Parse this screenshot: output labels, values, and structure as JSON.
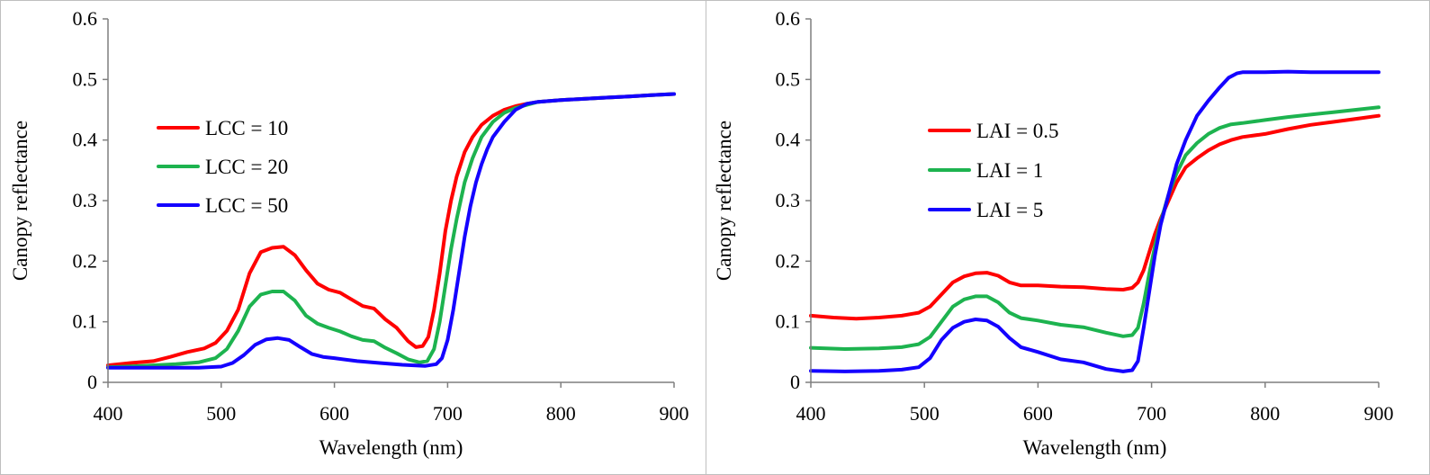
{
  "colors": {
    "red": "#ff0000",
    "green": "#1db34f",
    "blue": "#1400ff",
    "axis": "#7f7f7f",
    "frame": "#bfbfbf"
  },
  "chart_data": [
    {
      "type": "line",
      "xlabel": "Wavelength (nm)",
      "ylabel": "Canopy reflectance",
      "xlim": [
        400,
        900
      ],
      "ylim": [
        0,
        0.6
      ],
      "xticks": [
        400,
        500,
        600,
        700,
        800,
        900
      ],
      "yticks": [
        0,
        0.1,
        0.2,
        0.3,
        0.4,
        0.5,
        0.6
      ],
      "xtick_labels": [
        "400",
        "500",
        "600",
        "700",
        "800",
        "900"
      ],
      "ytick_labels": [
        "0",
        "0.1",
        "0.2",
        "0.3",
        "0.4",
        "0.5",
        "0.6"
      ],
      "grid": false,
      "legend_position": "upper-left",
      "series": [
        {
          "name": "LCC = 10",
          "color": "#ff0000",
          "x": [
            400,
            420,
            440,
            455,
            470,
            485,
            495,
            505,
            515,
            525,
            535,
            545,
            555,
            565,
            575,
            585,
            595,
            605,
            615,
            625,
            635,
            645,
            655,
            665,
            672,
            678,
            683,
            688,
            693,
            698,
            703,
            708,
            715,
            722,
            730,
            740,
            750,
            760,
            770,
            780,
            800,
            820,
            840,
            860,
            880,
            900
          ],
          "y": [
            0.028,
            0.032,
            0.035,
            0.042,
            0.05,
            0.056,
            0.065,
            0.085,
            0.12,
            0.18,
            0.215,
            0.222,
            0.224,
            0.21,
            0.185,
            0.163,
            0.153,
            0.148,
            0.137,
            0.126,
            0.122,
            0.104,
            0.09,
            0.068,
            0.058,
            0.06,
            0.075,
            0.12,
            0.18,
            0.25,
            0.3,
            0.34,
            0.38,
            0.405,
            0.425,
            0.44,
            0.45,
            0.456,
            0.46,
            0.463,
            0.466,
            0.468,
            0.47,
            0.472,
            0.474,
            0.476
          ]
        },
        {
          "name": "LCC = 20",
          "color": "#1db34f",
          "x": [
            400,
            430,
            460,
            480,
            495,
            505,
            515,
            525,
            535,
            545,
            555,
            565,
            575,
            585,
            595,
            605,
            615,
            625,
            635,
            645,
            655,
            665,
            675,
            682,
            688,
            693,
            698,
            703,
            708,
            715,
            722,
            730,
            740,
            750,
            760,
            770,
            780,
            800,
            820,
            840,
            860,
            880,
            900
          ],
          "y": [
            0.025,
            0.027,
            0.03,
            0.033,
            0.04,
            0.055,
            0.085,
            0.125,
            0.145,
            0.15,
            0.15,
            0.135,
            0.11,
            0.097,
            0.09,
            0.084,
            0.076,
            0.07,
            0.068,
            0.057,
            0.048,
            0.038,
            0.033,
            0.035,
            0.055,
            0.1,
            0.16,
            0.22,
            0.27,
            0.33,
            0.37,
            0.405,
            0.43,
            0.445,
            0.453,
            0.458,
            0.463,
            0.466,
            0.468,
            0.47,
            0.472,
            0.474,
            0.476
          ]
        },
        {
          "name": "LCC = 50",
          "color": "#1400ff",
          "x": [
            400,
            440,
            480,
            500,
            510,
            520,
            530,
            540,
            550,
            560,
            570,
            580,
            590,
            600,
            620,
            640,
            660,
            680,
            690,
            695,
            700,
            705,
            710,
            715,
            720,
            725,
            730,
            735,
            740,
            750,
            760,
            770,
            780,
            800,
            820,
            840,
            860,
            880,
            900
          ],
          "y": [
            0.024,
            0.024,
            0.024,
            0.026,
            0.032,
            0.045,
            0.062,
            0.071,
            0.073,
            0.07,
            0.058,
            0.047,
            0.042,
            0.04,
            0.035,
            0.032,
            0.029,
            0.027,
            0.03,
            0.04,
            0.07,
            0.12,
            0.18,
            0.24,
            0.29,
            0.33,
            0.36,
            0.385,
            0.405,
            0.43,
            0.45,
            0.46,
            0.463,
            0.466,
            0.468,
            0.47,
            0.472,
            0.474,
            0.476
          ]
        }
      ]
    },
    {
      "type": "line",
      "xlabel": "Wavelength (nm)",
      "ylabel": "Canopy reflectance",
      "xlim": [
        400,
        900
      ],
      "ylim": [
        0,
        0.6
      ],
      "xticks": [
        400,
        500,
        600,
        700,
        800,
        900
      ],
      "yticks": [
        0,
        0.1,
        0.2,
        0.3,
        0.4,
        0.5,
        0.6
      ],
      "xtick_labels": [
        "400",
        "500",
        "600",
        "700",
        "800",
        "900"
      ],
      "ytick_labels": [
        "0",
        "0.1",
        "0.2",
        "0.3",
        "0.4",
        "0.5",
        "0.6"
      ],
      "grid": false,
      "legend_position": "upper-left",
      "series": [
        {
          "name": "LAI = 0.5",
          "color": "#ff0000",
          "x": [
            400,
            420,
            440,
            460,
            480,
            495,
            505,
            515,
            525,
            535,
            545,
            555,
            565,
            575,
            585,
            600,
            620,
            640,
            660,
            675,
            683,
            688,
            693,
            698,
            703,
            708,
            715,
            722,
            730,
            740,
            750,
            760,
            770,
            780,
            800,
            820,
            840,
            860,
            880,
            900
          ],
          "y": [
            0.11,
            0.107,
            0.105,
            0.107,
            0.11,
            0.115,
            0.125,
            0.145,
            0.165,
            0.175,
            0.18,
            0.181,
            0.176,
            0.165,
            0.16,
            0.16,
            0.158,
            0.157,
            0.154,
            0.153,
            0.156,
            0.165,
            0.185,
            0.215,
            0.245,
            0.27,
            0.3,
            0.33,
            0.355,
            0.37,
            0.383,
            0.393,
            0.4,
            0.405,
            0.41,
            0.418,
            0.425,
            0.43,
            0.435,
            0.44
          ]
        },
        {
          "name": "LAI = 1",
          "color": "#1db34f",
          "x": [
            400,
            430,
            460,
            480,
            495,
            505,
            515,
            525,
            535,
            545,
            555,
            565,
            575,
            585,
            600,
            620,
            640,
            660,
            675,
            683,
            688,
            693,
            698,
            703,
            708,
            715,
            722,
            730,
            740,
            750,
            760,
            770,
            780,
            800,
            820,
            840,
            860,
            880,
            900
          ],
          "y": [
            0.057,
            0.055,
            0.056,
            0.058,
            0.063,
            0.075,
            0.1,
            0.125,
            0.137,
            0.142,
            0.142,
            0.132,
            0.115,
            0.106,
            0.102,
            0.095,
            0.091,
            0.082,
            0.076,
            0.078,
            0.09,
            0.13,
            0.18,
            0.225,
            0.265,
            0.31,
            0.345,
            0.375,
            0.395,
            0.41,
            0.42,
            0.426,
            0.428,
            0.433,
            0.438,
            0.442,
            0.446,
            0.45,
            0.454
          ]
        },
        {
          "name": "LAI = 5",
          "color": "#1400ff",
          "x": [
            400,
            430,
            460,
            480,
            495,
            505,
            515,
            525,
            535,
            545,
            555,
            565,
            575,
            585,
            600,
            620,
            640,
            660,
            675,
            683,
            688,
            693,
            698,
            703,
            708,
            715,
            722,
            730,
            740,
            750,
            760,
            768,
            775,
            780,
            800,
            820,
            840,
            860,
            880,
            900
          ],
          "y": [
            0.019,
            0.018,
            0.019,
            0.021,
            0.025,
            0.04,
            0.07,
            0.09,
            0.1,
            0.104,
            0.102,
            0.092,
            0.073,
            0.058,
            0.05,
            0.038,
            0.033,
            0.022,
            0.018,
            0.02,
            0.035,
            0.09,
            0.15,
            0.21,
            0.26,
            0.31,
            0.36,
            0.4,
            0.44,
            0.465,
            0.487,
            0.503,
            0.51,
            0.512,
            0.512,
            0.513,
            0.512,
            0.512,
            0.512,
            0.512
          ]
        }
      ]
    }
  ]
}
